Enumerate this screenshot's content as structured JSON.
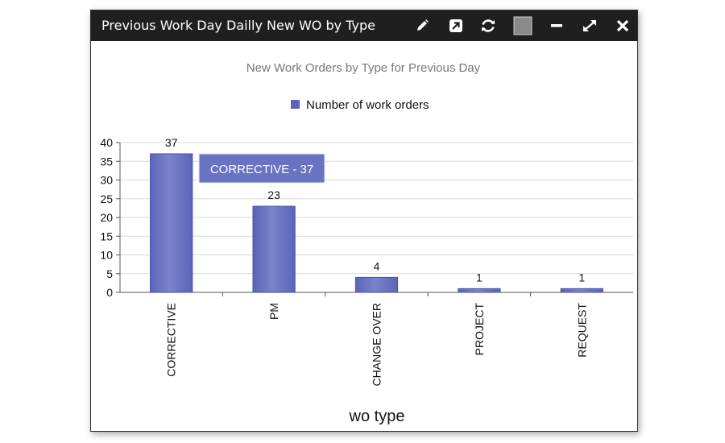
{
  "window": {
    "title": "Previous Work Day Dailly New WO by Type",
    "buttons": [
      {
        "name": "edit",
        "icon": "pencil-icon"
      },
      {
        "name": "open",
        "icon": "external-link-icon"
      },
      {
        "name": "refresh",
        "icon": "refresh-icon"
      },
      {
        "name": "color",
        "icon": "color-square-icon"
      },
      {
        "name": "minimize",
        "icon": "minimize-icon"
      },
      {
        "name": "maximize",
        "icon": "expand-icon"
      },
      {
        "name": "close",
        "icon": "close-icon"
      }
    ]
  },
  "colors": {
    "titlebar": "#1f1f1f",
    "bar": "#5b64b8",
    "bar_light": "#7b83cc",
    "tooltip": "#6a72c2",
    "grid": "#d9d9d9",
    "color_swatch": "#8a8a8a"
  },
  "tooltip": {
    "text": "CORRECTIVE - 37"
  },
  "chart_data": {
    "type": "bar",
    "title": "New Work Orders by Type for Previous Day",
    "xlabel": "wo type",
    "ylabel": "",
    "categories": [
      "CORRECTIVE",
      "PM",
      "CHANGE OVER",
      "PROJECT",
      "REQUEST"
    ],
    "series": [
      {
        "name": "Number of work orders",
        "values": [
          37,
          23,
          4,
          1,
          1
        ]
      }
    ],
    "data_labels": [
      "37",
      "23",
      "4",
      "1",
      "1"
    ],
    "ylim": [
      0,
      40
    ],
    "yticks": [
      "0",
      "5",
      "10",
      "15",
      "20",
      "25",
      "30",
      "35",
      "40"
    ],
    "grid": true,
    "legend_position": "top"
  }
}
